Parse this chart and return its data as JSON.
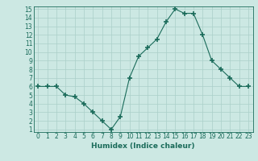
{
  "x": [
    0,
    1,
    2,
    3,
    4,
    5,
    6,
    7,
    8,
    9,
    10,
    11,
    12,
    13,
    14,
    15,
    16,
    17,
    18,
    19,
    20,
    21,
    22,
    23
  ],
  "y": [
    6.0,
    6.0,
    6.0,
    5.0,
    4.8,
    4.0,
    3.0,
    2.0,
    1.0,
    2.5,
    7.0,
    9.5,
    10.5,
    11.5,
    13.5,
    15.0,
    14.5,
    14.5,
    12.0,
    9.0,
    8.0,
    7.0,
    6.0,
    6.0
  ],
  "line_color": "#1a6b5a",
  "marker": "+",
  "marker_size": 4,
  "marker_lw": 1.2,
  "bg_color": "#cce8e3",
  "grid_color": "#aacfc9",
  "xlabel": "Humidex (Indice chaleur)",
  "xlabel_fontsize": 6.5,
  "tick_fontsize": 5.5,
  "ylim": [
    1,
    15
  ],
  "xlim": [
    -0.5,
    23.5
  ],
  "yticks": [
    1,
    2,
    3,
    4,
    5,
    6,
    7,
    8,
    9,
    10,
    11,
    12,
    13,
    14,
    15
  ],
  "xticks": [
    0,
    1,
    2,
    3,
    4,
    5,
    6,
    7,
    8,
    9,
    10,
    11,
    12,
    13,
    14,
    15,
    16,
    17,
    18,
    19,
    20,
    21,
    22,
    23
  ]
}
